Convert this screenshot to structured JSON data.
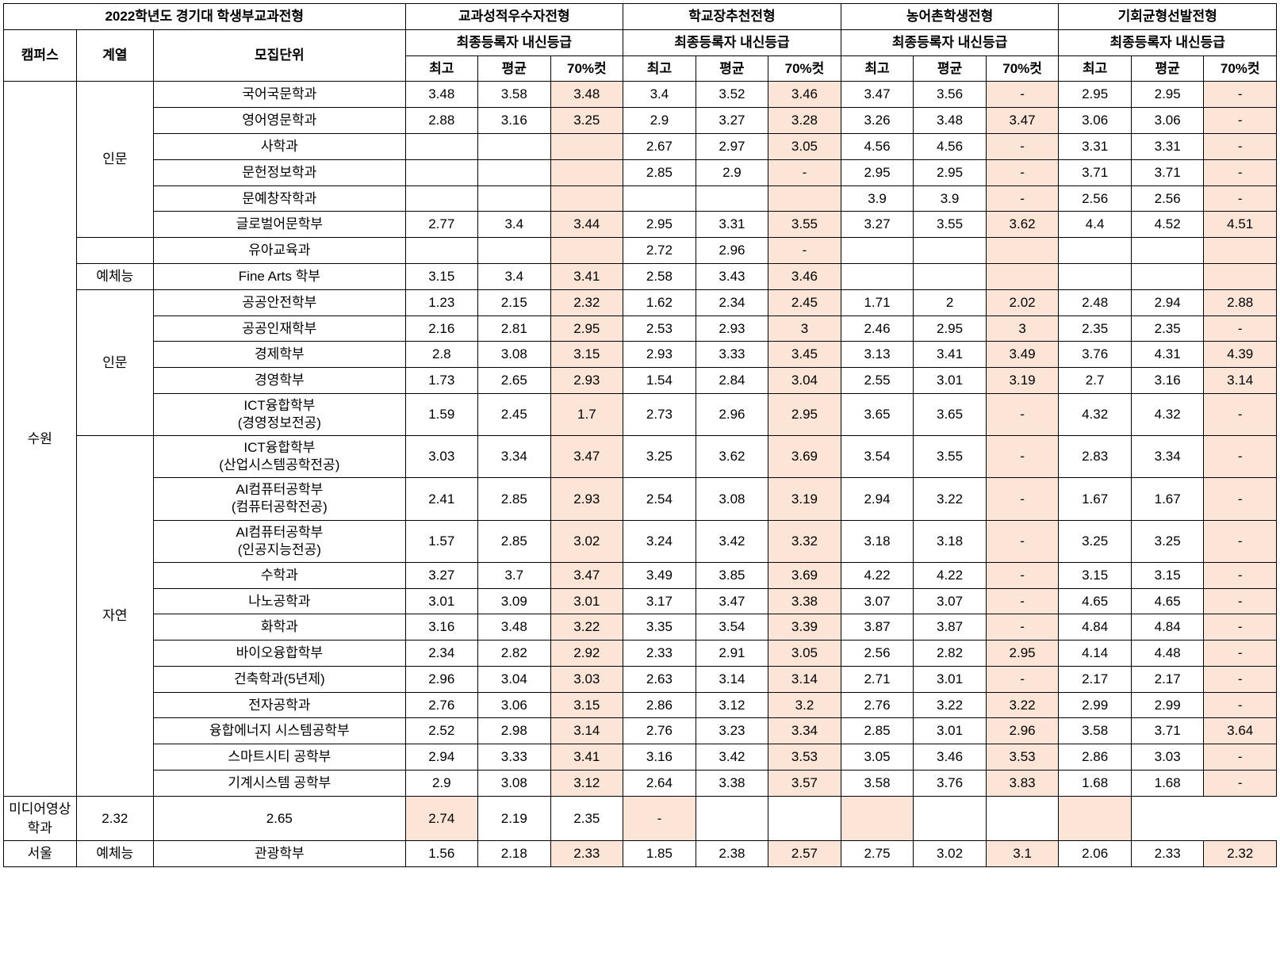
{
  "title": "2022학년도 경기대 학생부교과전형",
  "groups": [
    {
      "name": "교과성적우수자전형",
      "sub": "최종등록자 내신등급",
      "cols": [
        "최고",
        "평균",
        "70%컷"
      ]
    },
    {
      "name": "학교장추천전형",
      "sub": "최종등록자 내신등급",
      "cols": [
        "최고",
        "평균",
        "70%컷"
      ]
    },
    {
      "name": "농어촌학생전형",
      "sub": "최종등록자 내신등급",
      "cols": [
        "최고",
        "평균",
        "70%컷"
      ]
    },
    {
      "name": "기회균형선발전형",
      "sub": "최종등록자 내신등급",
      "cols": [
        "최고",
        "평균",
        "70%컷"
      ]
    }
  ],
  "leftHeaders": [
    "캠퍼스",
    "계열",
    "모집단위"
  ],
  "campuses": {
    "suwon": "수원",
    "seoul": "서울"
  },
  "categories": {
    "inmun": "인문",
    "yeche": "예체능",
    "jayeon": "자연"
  },
  "rows": [
    {
      "dept": "국어국문학과",
      "v": [
        "3.48",
        "3.58",
        "3.48",
        "3.4",
        "3.52",
        "3.46",
        "3.47",
        "3.56",
        "-",
        "2.95",
        "2.95",
        "-"
      ]
    },
    {
      "dept": "영어영문학과",
      "v": [
        "2.88",
        "3.16",
        "3.25",
        "2.9",
        "3.27",
        "3.28",
        "3.26",
        "3.48",
        "3.47",
        "3.06",
        "3.06",
        "-"
      ]
    },
    {
      "dept": "사학과",
      "v": [
        "",
        "",
        "",
        "2.67",
        "2.97",
        "3.05",
        "4.56",
        "4.56",
        "-",
        "3.31",
        "3.31",
        "-"
      ]
    },
    {
      "dept": "문헌정보학과",
      "v": [
        "",
        "",
        "",
        "2.85",
        "2.9",
        "-",
        "2.95",
        "2.95",
        "-",
        "3.71",
        "3.71",
        "-"
      ]
    },
    {
      "dept": "문예창작학과",
      "v": [
        "",
        "",
        "",
        "",
        "",
        "",
        "3.9",
        "3.9",
        "-",
        "2.56",
        "2.56",
        "-"
      ]
    },
    {
      "dept": "글로벌어문학부",
      "v": [
        "2.77",
        "3.4",
        "3.44",
        "2.95",
        "3.31",
        "3.55",
        "3.27",
        "3.55",
        "3.62",
        "4.4",
        "4.52",
        "4.51"
      ]
    },
    {
      "dept": "유아교육과",
      "v": [
        "",
        "",
        "",
        "2.72",
        "2.96",
        "-",
        "",
        "",
        "",
        "",
        "",
        ""
      ]
    },
    {
      "dept": "Fine Arts 학부",
      "v": [
        "3.15",
        "3.4",
        "3.41",
        "2.58",
        "3.43",
        "3.46",
        "",
        "",
        "",
        "",
        "",
        ""
      ]
    },
    {
      "dept": "공공안전학부",
      "v": [
        "1.23",
        "2.15",
        "2.32",
        "1.62",
        "2.34",
        "2.45",
        "1.71",
        "2",
        "2.02",
        "2.48",
        "2.94",
        "2.88"
      ]
    },
    {
      "dept": "공공인재학부",
      "v": [
        "2.16",
        "2.81",
        "2.95",
        "2.53",
        "2.93",
        "3",
        "2.46",
        "2.95",
        "3",
        "2.35",
        "2.35",
        "-"
      ]
    },
    {
      "dept": "경제학부",
      "v": [
        "2.8",
        "3.08",
        "3.15",
        "2.93",
        "3.33",
        "3.45",
        "3.13",
        "3.41",
        "3.49",
        "3.76",
        "4.31",
        "4.39"
      ]
    },
    {
      "dept": "경영학부",
      "v": [
        "1.73",
        "2.65",
        "2.93",
        "1.54",
        "2.84",
        "3.04",
        "2.55",
        "3.01",
        "3.19",
        "2.7",
        "3.16",
        "3.14"
      ]
    },
    {
      "dept": "ICT융합학부\n(경영정보전공)",
      "v": [
        "1.59",
        "2.45",
        "1.7",
        "2.73",
        "2.96",
        "2.95",
        "3.65",
        "3.65",
        "-",
        "4.32",
        "4.32",
        "-"
      ]
    },
    {
      "dept": "ICT융합학부\n(산업시스템공학전공)",
      "v": [
        "3.03",
        "3.34",
        "3.47",
        "3.25",
        "3.62",
        "3.69",
        "3.54",
        "3.55",
        "-",
        "2.83",
        "3.34",
        "-"
      ]
    },
    {
      "dept": "AI컴퓨터공학부\n(컴퓨터공학전공)",
      "v": [
        "2.41",
        "2.85",
        "2.93",
        "2.54",
        "3.08",
        "3.19",
        "2.94",
        "3.22",
        "-",
        "1.67",
        "1.67",
        "-"
      ]
    },
    {
      "dept": "AI컴퓨터공학부\n(인공지능전공)",
      "v": [
        "1.57",
        "2.85",
        "3.02",
        "3.24",
        "3.42",
        "3.32",
        "3.18",
        "3.18",
        "-",
        "3.25",
        "3.25",
        "-"
      ]
    },
    {
      "dept": "수학과",
      "v": [
        "3.27",
        "3.7",
        "3.47",
        "3.49",
        "3.85",
        "3.69",
        "4.22",
        "4.22",
        "-",
        "3.15",
        "3.15",
        "-"
      ]
    },
    {
      "dept": "나노공학과",
      "v": [
        "3.01",
        "3.09",
        "3.01",
        "3.17",
        "3.47",
        "3.38",
        "3.07",
        "3.07",
        "-",
        "4.65",
        "4.65",
        "-"
      ]
    },
    {
      "dept": "화학과",
      "v": [
        "3.16",
        "3.48",
        "3.22",
        "3.35",
        "3.54",
        "3.39",
        "3.87",
        "3.87",
        "-",
        "4.84",
        "4.84",
        "-"
      ]
    },
    {
      "dept": "바이오융합학부",
      "v": [
        "2.34",
        "2.82",
        "2.92",
        "2.33",
        "2.91",
        "3.05",
        "2.56",
        "2.82",
        "2.95",
        "4.14",
        "4.48",
        "-"
      ]
    },
    {
      "dept": "건축학과(5년제)",
      "v": [
        "2.96",
        "3.04",
        "3.03",
        "2.63",
        "3.14",
        "3.14",
        "2.71",
        "3.01",
        "-",
        "2.17",
        "2.17",
        "-"
      ]
    },
    {
      "dept": "전자공학과",
      "v": [
        "2.76",
        "3.06",
        "3.15",
        "2.86",
        "3.12",
        "3.2",
        "2.76",
        "3.22",
        "3.22",
        "2.99",
        "2.99",
        "-"
      ]
    },
    {
      "dept": "융합에너지 시스템공학부",
      "v": [
        "2.52",
        "2.98",
        "3.14",
        "2.76",
        "3.23",
        "3.34",
        "2.85",
        "3.01",
        "2.96",
        "3.58",
        "3.71",
        "3.64"
      ]
    },
    {
      "dept": "스마트시티 공학부",
      "v": [
        "2.94",
        "3.33",
        "3.41",
        "3.16",
        "3.42",
        "3.53",
        "3.05",
        "3.46",
        "3.53",
        "2.86",
        "3.03",
        "-"
      ]
    },
    {
      "dept": "기계시스템 공학부",
      "v": [
        "2.9",
        "3.08",
        "3.12",
        "2.64",
        "3.38",
        "3.57",
        "3.58",
        "3.76",
        "3.83",
        "1.68",
        "1.68",
        "-"
      ]
    },
    {
      "dept": "미디어영상학과",
      "v": [
        "2.32",
        "2.65",
        "2.74",
        "2.19",
        "2.35",
        "-",
        "",
        "",
        "",
        "",
        "",
        ""
      ]
    },
    {
      "dept": "관광학부",
      "v": [
        "1.56",
        "2.18",
        "2.33",
        "1.85",
        "2.38",
        "2.57",
        "2.75",
        "3.02",
        "3.1",
        "2.06",
        "2.33",
        "2.32"
      ]
    }
  ],
  "highlightCols": [
    2,
    5,
    8,
    11
  ],
  "style": {
    "highlightColor": "#fce4d6",
    "borderColor": "#000000",
    "fontFamily": "Malgun Gothic",
    "fontSize": 17
  }
}
